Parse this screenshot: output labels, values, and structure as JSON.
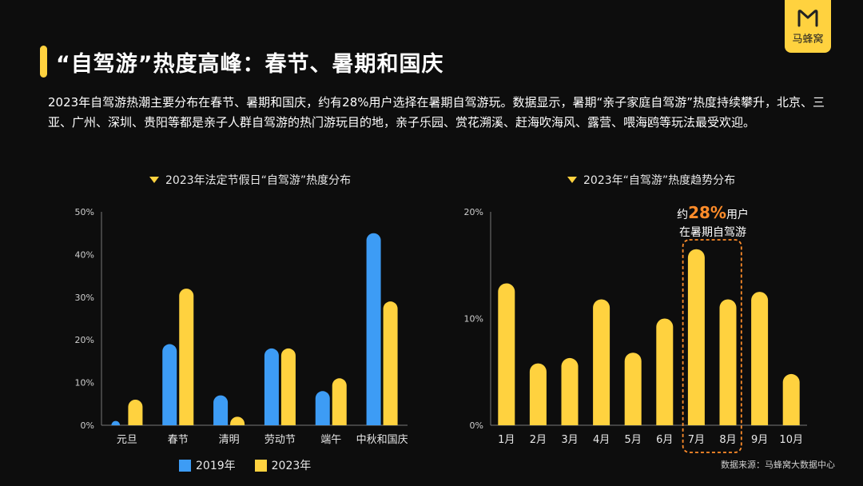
{
  "logo": {
    "label": "马蜂窝"
  },
  "header": {
    "title": "“自驾游”热度高峰：春节、暑期和国庆"
  },
  "description": "2023年自驾游热潮主要分布在春节、暑期和国庆，约有28%用户选择在暑期自驾游玩。数据显示，暑期“亲子家庭自驾游”热度持续攀升，北京、三亚、广州、深圳、贵阳等都是亲子人群自驾游的热门游玩目的地，亲子乐园、赏花溯溪、赶海吹海风、露营、喂海鸥等玩法最受欢迎。",
  "colors": {
    "accent": "#ffd23f",
    "blue": "#3d9cf5",
    "highlight": "#ff8c2a"
  },
  "chart_data": [
    {
      "type": "bar",
      "title": "2023年法定节假日“自驾游”热度分布",
      "categories": [
        "元旦",
        "春节",
        "清明",
        "劳动节",
        "端午",
        "中秋和国庆"
      ],
      "series": [
        {
          "name": "2019年",
          "values": [
            1,
            19,
            7,
            18,
            8,
            45
          ],
          "color": "#3d9cf5"
        },
        {
          "name": "2023年",
          "values": [
            6,
            32,
            2,
            18,
            11,
            29
          ],
          "color": "#ffd23f"
        }
      ],
      "ylim": [
        0,
        50
      ],
      "yticks": [
        "0%",
        "10%",
        "20%",
        "30%",
        "40%",
        "50%"
      ],
      "legend": "bottom"
    },
    {
      "type": "bar",
      "title": "2023年“自驾游”热度趋势分布",
      "categories": [
        "1月",
        "2月",
        "3月",
        "4月",
        "5月",
        "6月",
        "7月",
        "8月",
        "9月",
        "10月"
      ],
      "values": [
        13.3,
        5.8,
        6.3,
        11.8,
        6.8,
        10,
        16.5,
        11.8,
        12.5,
        4.8
      ],
      "ylim": [
        0,
        20
      ],
      "yticks": [
        "0%",
        "10%",
        "20%"
      ],
      "highlight_categories": [
        "7月",
        "8月"
      ],
      "annotation": {
        "prefix": "约",
        "value": "28%",
        "suffix": "用户",
        "line2": "在暑期自驾游"
      }
    }
  ],
  "legend": {
    "item1": "2019年",
    "item2": "2023年"
  },
  "source": "数据来源：马蜂窝大数据中心"
}
